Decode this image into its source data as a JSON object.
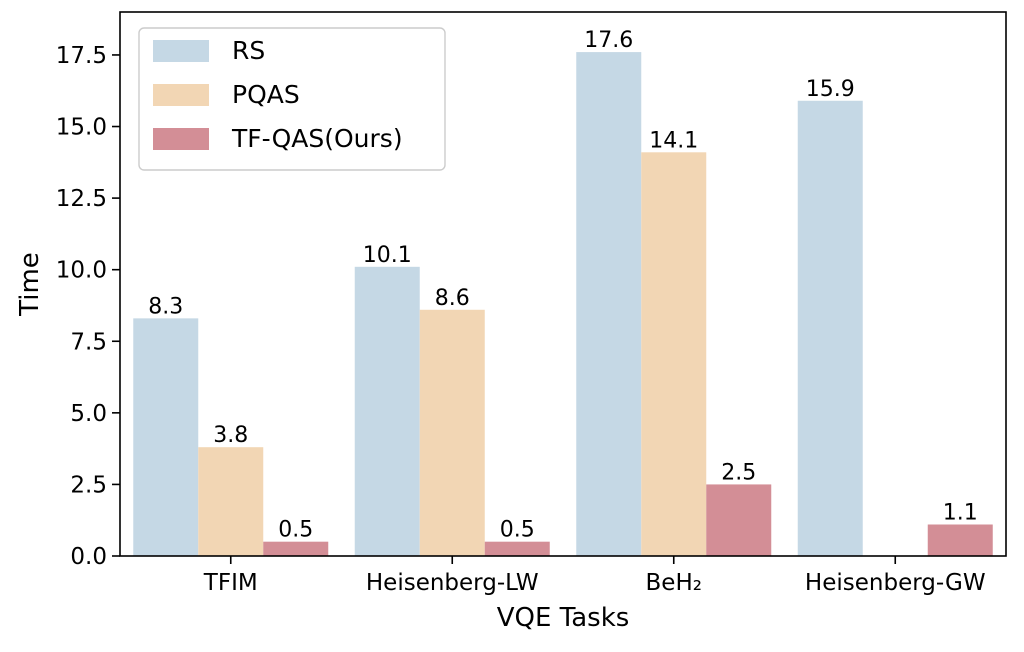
{
  "chart_data": {
    "type": "bar",
    "title": "",
    "xlabel": "VQE Tasks",
    "ylabel": "Time",
    "categories": [
      "TFIM",
      "Heisenberg-LW",
      "BeH₂",
      "Heisenberg-GW"
    ],
    "series": [
      {
        "name": "RS",
        "color": "#c5d8e5",
        "values": [
          8.3,
          10.1,
          17.6,
          15.9
        ]
      },
      {
        "name": "PQAS",
        "color": "#f2d6b4",
        "values": [
          3.8,
          8.6,
          14.1,
          null
        ]
      },
      {
        "name": "TF-QAS(Ours)",
        "color": "#d38e96",
        "values": [
          0.5,
          0.5,
          2.5,
          1.1
        ]
      }
    ],
    "ylim": [
      0,
      19
    ],
    "yticks": [
      0.0,
      2.5,
      5.0,
      7.5,
      10.0,
      12.5,
      15.0,
      17.5
    ],
    "ytick_labels": [
      "0.0",
      "2.5",
      "5.0",
      "7.5",
      "10.0",
      "12.5",
      "15.0",
      "17.5"
    ],
    "data_labels": [
      [
        "8.3",
        "10.1",
        "17.6",
        "15.9"
      ],
      [
        "3.8",
        "8.6",
        "14.1",
        ""
      ],
      [
        "0.5",
        "0.5",
        "2.5",
        "1.1"
      ]
    ],
    "grid": false,
    "legend_position": "top-left"
  }
}
